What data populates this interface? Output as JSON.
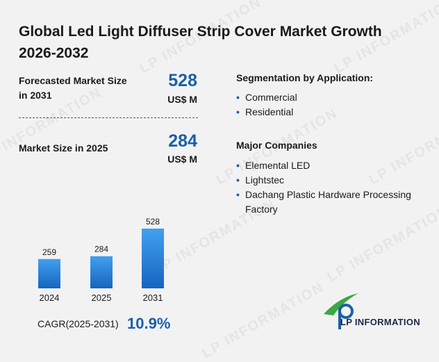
{
  "title": "Global Led Light Diffuser Strip Cover Market Growth 2026-2032",
  "metrics": {
    "forecast_label": "Forecasted Market Size in 2031",
    "forecast_value": "528",
    "forecast_unit": "US$ M",
    "current_label": "Market Size in 2025",
    "current_value": "284",
    "current_unit": "US$ M"
  },
  "segmentation": {
    "heading": "Segmentation by Application:",
    "items": [
      "Commercial",
      "Residential"
    ]
  },
  "companies": {
    "heading": "Major Companies",
    "items": [
      "Elemental LED",
      "Lightstec",
      "Dachang Plastic Hardware Processing Factory"
    ]
  },
  "chart_data": {
    "type": "bar",
    "categories": [
      "2024",
      "2025",
      "2031"
    ],
    "values": [
      259,
      284,
      528
    ],
    "title": "",
    "xlabel": "",
    "ylabel": "",
    "ylim": [
      0,
      528
    ],
    "grid": false,
    "legend": "none",
    "bar_color_top": "#42a0ee",
    "bar_color_bottom": "#1565c0"
  },
  "cagr": {
    "label": "CAGR(2025-2031)",
    "value": "10.9%"
  },
  "logo": {
    "text": "LP INFORMATION",
    "icon": "lp-logo-icon",
    "colors": {
      "green": "#3aa843",
      "blue": "#1b5fa8"
    }
  },
  "watermark": {
    "text": "LP INFORMATION"
  }
}
